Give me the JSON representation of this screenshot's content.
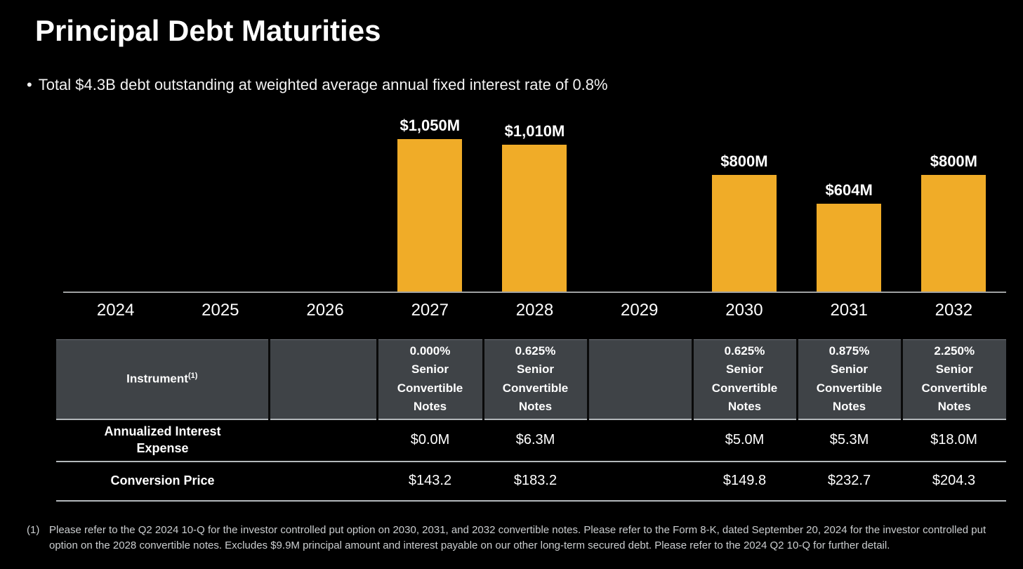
{
  "page": {
    "title": "Principal Debt Maturities",
    "bullet_marker": "•",
    "bullet": "Total $4.3B debt outstanding at weighted average annual fixed interest rate of 0.8%"
  },
  "colors": {
    "background": "#000000",
    "bar": "#F0AC28",
    "table_header_bg": "#3F4347",
    "axis_line": "#9FA1A2",
    "table_rule": "#B3B8BB",
    "text": "#FFFFFF",
    "footnote_text": "#CBCED0"
  },
  "chart_data": {
    "type": "bar",
    "title": "Principal Debt Maturities",
    "categories": [
      "2024",
      "2025",
      "2026",
      "2027",
      "2028",
      "2029",
      "2030",
      "2031",
      "2032"
    ],
    "values": [
      0,
      0,
      0,
      1050,
      1010,
      0,
      800,
      604,
      800
    ],
    "bar_labels": [
      "",
      "",
      "",
      "$1,050M",
      "$1,010M",
      "",
      "$800M",
      "$604M",
      "$800M"
    ],
    "xlabel": "",
    "ylabel": "",
    "unit": "USD millions",
    "ylim": [
      0,
      1220
    ],
    "grid": false,
    "legend_position": "none",
    "bar_color": "#F0AC28"
  },
  "table": {
    "header": {
      "instrument_label": "Instrument",
      "instrument_footnote_ref": "(1)",
      "columns": [
        "",
        "0.000% Senior Convertible Notes",
        "0.625% Senior Convertible Notes",
        "",
        "0.625% Senior Convertible Notes",
        "0.875% Senior Convertible Notes",
        "2.250% Senior Convertible Notes"
      ]
    },
    "rows": [
      {
        "label": "Annualized Interest Expense",
        "values": [
          "",
          "$0.0M",
          "$6.3M",
          "",
          "$5.0M",
          "$5.3M",
          "$18.0M"
        ]
      },
      {
        "label": "Conversion Price",
        "values": [
          "",
          "$143.2",
          "$183.2",
          "",
          "$149.8",
          "$232.7",
          "$204.3"
        ]
      }
    ]
  },
  "footnote": {
    "marker": "(1)",
    "text": "Please refer to the Q2 2024 10-Q for the investor controlled put option on 2030, 2031, and 2032 convertible notes. Please refer to the Form 8-K, dated September 20, 2024 for the investor controlled put option on the 2028 convertible notes. Excludes $9.9M principal amount and interest payable on our other long-term secured debt. Please refer to the 2024 Q2 10-Q for further detail."
  }
}
